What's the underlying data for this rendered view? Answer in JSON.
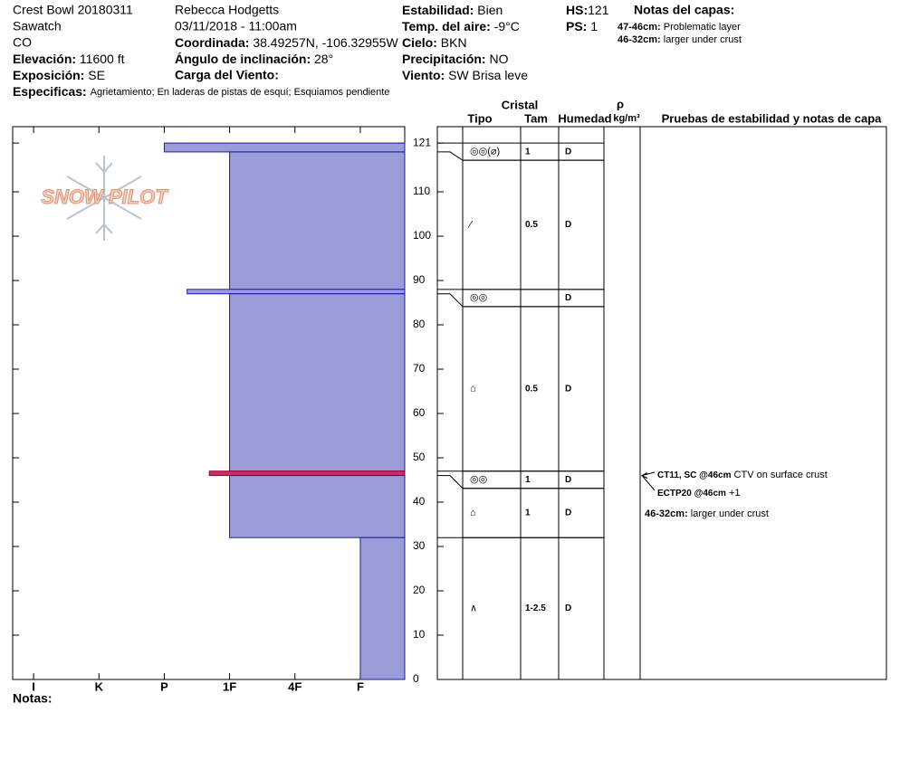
{
  "header": {
    "name": "Crest Bowl 20180311",
    "range": "Sawatch",
    "state": "CO",
    "elevation": {
      "label": "Elevación:",
      "value": "11600 ft"
    },
    "aspect": {
      "label": "Exposición:",
      "value": "SE"
    },
    "specifics": {
      "label": "Especificas:",
      "value": "Agrietamiento;  En laderas de pistas de esquí;  Esquiamos pendiente"
    },
    "observer": "Rebecca Hodgetts",
    "datetime": "03/11/2018 - 11:00am",
    "coordinates": {
      "label": "Coordinada:",
      "value": "38.49257N, -106.32955W"
    },
    "slope_angle": {
      "label": "Ángulo de inclinación:",
      "value": "28°"
    },
    "wind_loading": {
      "label": "Carga del Viento:"
    },
    "stability": {
      "label": "Estabilidad:",
      "value": "Bien"
    },
    "air_temp": {
      "label": "Temp. del aire:",
      "value": "-9°C"
    },
    "sky": {
      "label": "Cielo:",
      "value": "BKN"
    },
    "precipitation": {
      "label": "Precipitación:",
      "value": "NO"
    },
    "wind": {
      "label": "Viento:",
      "value": "SW Brisa leve"
    },
    "hs": {
      "label": "HS:",
      "value": 121
    },
    "ps": {
      "label": "PS:",
      "value": 1
    },
    "layer_notes": {
      "title": "Notas del capas:",
      "items": [
        {
          "label": "47-46cm:",
          "text": "Problematic layer"
        },
        {
          "label": "46-32cm:",
          "text": "larger under crust"
        }
      ]
    }
  },
  "logo": "SNOW PILOT",
  "chart_data": {
    "type": "snow-profile",
    "ylim": [
      0,
      124.7
    ],
    "yticks": [
      0,
      10,
      20,
      30,
      40,
      50,
      60,
      70,
      80,
      90,
      100,
      110,
      121
    ],
    "xlim": [
      -0.32,
      5.68
    ],
    "xticks": [
      {
        "value": 0,
        "label": "I"
      },
      {
        "value": 1,
        "label": "K"
      },
      {
        "value": 2,
        "label": "P"
      },
      {
        "value": 3,
        "label": "1F"
      },
      {
        "value": 4,
        "label": "4F"
      },
      {
        "value": 5,
        "label": "F"
      }
    ],
    "color": "#9c9cd8",
    "stroke": "#1c1ca0",
    "layers": [
      {
        "top": 121,
        "bottom": 119,
        "hardness": 2,
        "grain": "◎◎(⌀)",
        "size": "1",
        "moisture": "D"
      },
      {
        "top": 119,
        "bottom": 88,
        "hardness": 3,
        "grain": "⁄",
        "size": "0.5",
        "moisture": "D"
      },
      {
        "top": 88,
        "bottom": 87,
        "hardness": 2.35,
        "grain": "◎◎",
        "moisture": "D"
      },
      {
        "top": 87,
        "bottom": 47,
        "hardness": 3,
        "grain": "⌂",
        "size": "0.5",
        "moisture": "D"
      },
      {
        "top": 47,
        "bottom": 46,
        "hardness": 2.69,
        "grain": "◎◎",
        "size": "1",
        "moisture": "D",
        "color": "#c03070"
      },
      {
        "top": 46,
        "bottom": 32,
        "hardness": 3,
        "grain": "⌂",
        "size": "1",
        "moisture": "D"
      },
      {
        "top": 32,
        "bottom": 0,
        "hardness": 5,
        "grain": "∧",
        "size": "1-2.5",
        "moisture": "D"
      }
    ]
  },
  "crystal_table": {
    "crystal": "Cristal",
    "type": "Tipo",
    "size": "Tam",
    "moisture": "Humedad",
    "density": "ρ",
    "density_unit": "kg/m³",
    "tests": "Pruebas de estabilidad y notas de capa"
  },
  "tests": [
    {
      "code": "CT11, SC @46cm",
      "comment": "CTV on surface crust",
      "height": 46
    },
    {
      "code": "ECTP20 @46cm",
      "comment": "+1",
      "height": 46
    }
  ],
  "test_notes": [
    {
      "label": "46-32cm:",
      "text": "larger under crust"
    }
  ],
  "notes": {
    "label": "Notas:"
  }
}
